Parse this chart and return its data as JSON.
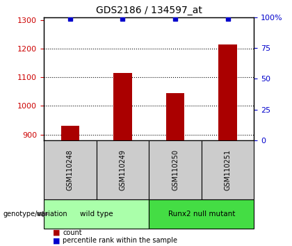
{
  "title": "GDS2186 / 134597_at",
  "samples": [
    "GSM110248",
    "GSM110249",
    "GSM110250",
    "GSM110251"
  ],
  "counts": [
    930,
    1115,
    1045,
    1215
  ],
  "percentiles": [
    99,
    99,
    99,
    99
  ],
  "ylim_left": [
    880,
    1310
  ],
  "ylim_right": [
    0,
    100
  ],
  "yticks_left": [
    900,
    1000,
    1100,
    1200,
    1300
  ],
  "yticks_right": [
    0,
    25,
    50,
    75,
    100
  ],
  "ytick_right_labels": [
    "0",
    "25",
    "50",
    "75",
    "100%"
  ],
  "bar_color": "#aa0000",
  "marker_color": "#0000cc",
  "grid_color": "#000000",
  "bg_color": "#ffffff",
  "left_tick_color": "#cc0000",
  "right_tick_color": "#0000cc",
  "groups": [
    {
      "label": "wild type",
      "samples": [
        0,
        1
      ],
      "color": "#aaffaa"
    },
    {
      "label": "Runx2 null mutant",
      "samples": [
        2,
        3
      ],
      "color": "#44dd44"
    }
  ],
  "group_header": "genotype/variation",
  "legend_count_label": "count",
  "legend_pct_label": "percentile rank within the sample",
  "sample_box_color": "#cccccc",
  "bar_width": 0.35
}
